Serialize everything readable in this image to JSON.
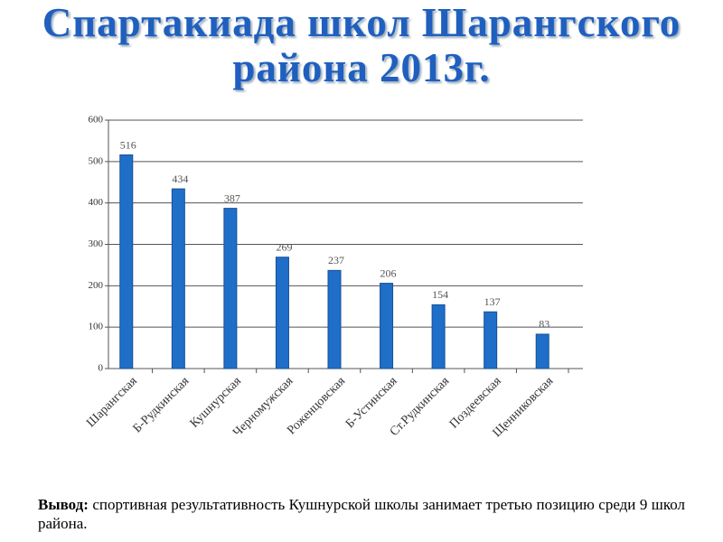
{
  "chart_data": {
    "type": "bar",
    "title": "Спартакиада школ Шарангского района 2013г.",
    "categories": [
      "Шарангская",
      "Б-Рудкинская",
      "Кушнурская",
      "Черномужская",
      "Роженцовская",
      "Б-Устинская",
      "Ст.Рудкинская",
      "Поздеевская",
      "Щенниковская"
    ],
    "values": [
      516,
      434,
      387,
      269,
      237,
      206,
      154,
      137,
      83
    ],
    "color": "#1f6fc9",
    "ylim": [
      0,
      600
    ],
    "yticks": [
      0,
      100,
      200,
      300,
      400,
      500,
      600
    ],
    "grid": true
  },
  "conclusion": {
    "label": "Вывод:",
    "text": "спортивная результативность Кушнурской школы занимает третью позицию среди 9 школ района."
  }
}
